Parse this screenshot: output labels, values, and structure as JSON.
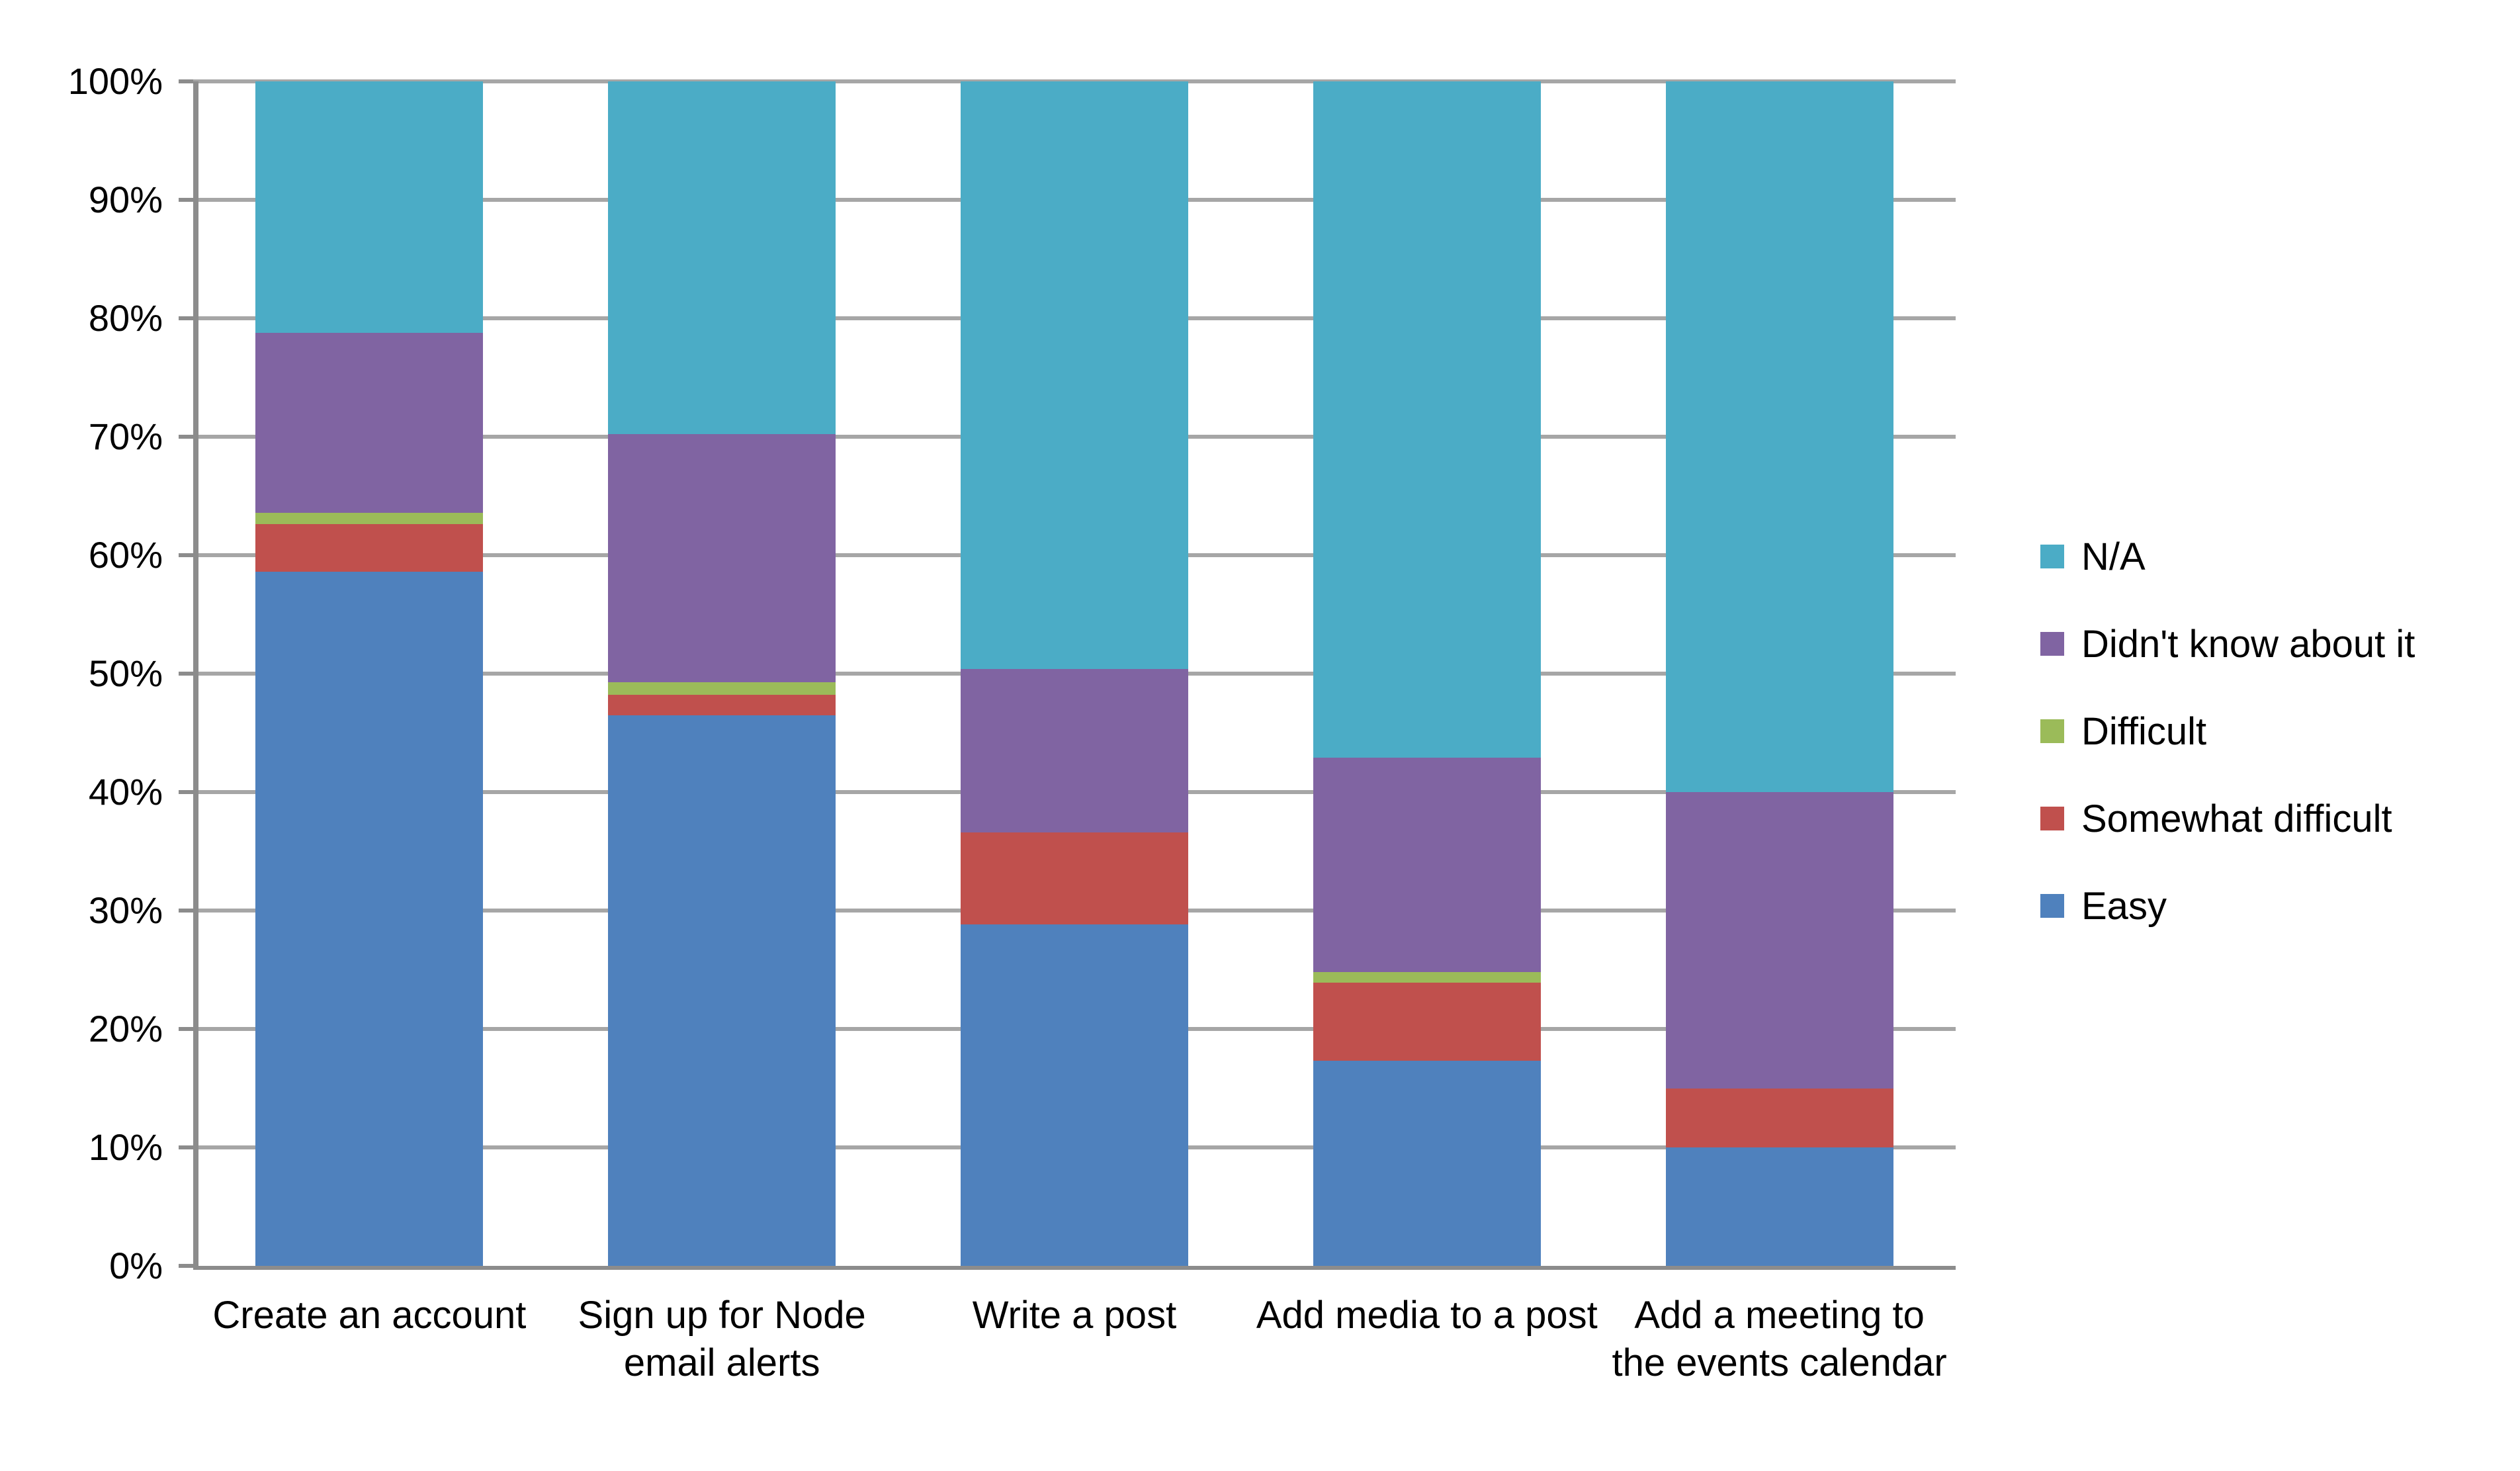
{
  "page": {
    "background": "#FFFFFF"
  },
  "chart_data": {
    "type": "bar",
    "subtype": "percent-stacked-column",
    "title": "",
    "categories": [
      "Create an account",
      "Sign up for Node email alerts",
      "Write a post",
      "Add media to a post",
      "Add a meeting to the events calendar"
    ],
    "series": [
      {
        "name": "Easy",
        "color": "#4F81BD",
        "values": [
          58.6,
          46.5,
          28.8,
          17.3,
          10.0
        ]
      },
      {
        "name": "Somewhat difficult",
        "color": "#C0504D",
        "values": [
          4.0,
          1.7,
          7.8,
          6.6,
          5.0
        ]
      },
      {
        "name": "Difficult",
        "color": "#9BBB59",
        "values": [
          1.0,
          1.1,
          0,
          0.9,
          0
        ]
      },
      {
        "name": "Didn't know about it",
        "color": "#8064A2",
        "values": [
          15.2,
          20.9,
          13.8,
          18.1,
          25.0
        ]
      },
      {
        "name": "N/A",
        "color": "#4BACC6",
        "values": [
          21.2,
          29.8,
          49.6,
          57.1,
          60.0
        ]
      }
    ],
    "stack_order_bottom_to_top": [
      "Easy",
      "Somewhat difficult",
      "Difficult",
      "Didn't know about it",
      "N/A"
    ],
    "y_axis": {
      "min": 0,
      "max": 100,
      "tick_labels": [
        "0%",
        "10%",
        "20%",
        "30%",
        "40%",
        "50%",
        "60%",
        "70%",
        "80%",
        "90%",
        "100%"
      ],
      "grid": true
    },
    "x_axis": {
      "label": ""
    },
    "legend": {
      "position": "right",
      "items": [
        {
          "label": "N/A",
          "color": "#4BACC6"
        },
        {
          "label": "Didn't know about it",
          "color": "#8064A2"
        },
        {
          "label": "Difficult",
          "color": "#9BBB59"
        },
        {
          "label": "Somewhat difficult",
          "color": "#C0504D"
        },
        {
          "label": "Easy",
          "color": "#4F81BD"
        }
      ]
    }
  },
  "styles": {
    "gridline_color": "#A6A6A6",
    "axis_line_color": "#8C8C8C",
    "text_color": "#000000"
  }
}
